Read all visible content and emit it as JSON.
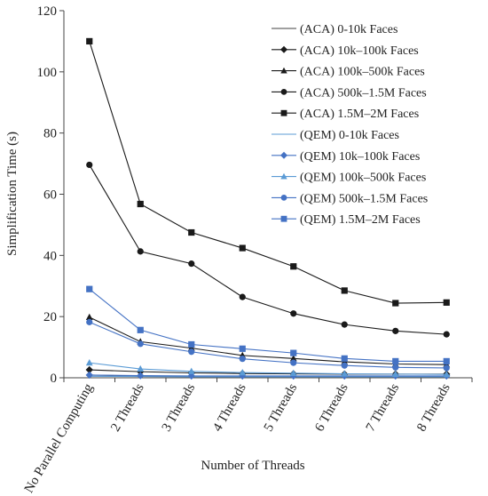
{
  "chart_data": {
    "type": "line",
    "xlabel": "Number of Threads",
    "ylabel": "Simplification Time (s)",
    "ylim": [
      0,
      120
    ],
    "yticks": [
      0,
      20,
      40,
      60,
      80,
      100,
      120
    ],
    "grid": false,
    "legend_position": "top-right",
    "categories": [
      "No Parallel Computing",
      "2 Threads",
      "3 Threads",
      "4 Threads",
      "5 Threads",
      "6 Threads",
      "7 Threads",
      "8 Threads"
    ],
    "series": [
      {
        "name": "(ACA) 0-10k Faces",
        "color": "#404040",
        "marker": "none",
        "values": [
          0.9,
          0.6,
          0.5,
          0.5,
          0.5,
          0.5,
          0.5,
          0.5
        ]
      },
      {
        "name": "(ACA) 10k–100k Faces",
        "color": "#1a1a1a",
        "marker": "diamond",
        "values": [
          2.6,
          2.0,
          1.6,
          1.4,
          1.3,
          1.2,
          1.2,
          1.2
        ]
      },
      {
        "name": "(ACA) 100k–500k Faces",
        "color": "#1a1a1a",
        "marker": "triangle",
        "values": [
          19.8,
          11.8,
          9.7,
          7.3,
          6.3,
          5.2,
          4.5,
          4.3
        ]
      },
      {
        "name": "(ACA) 500k–1.5M Faces",
        "color": "#1a1a1a",
        "marker": "circle",
        "values": [
          69.6,
          41.3,
          37.3,
          26.4,
          21.0,
          17.4,
          15.3,
          14.2
        ]
      },
      {
        "name": "(ACA) 1.5M–2M Faces",
        "color": "#1a1a1a",
        "marker": "square",
        "values": [
          110.0,
          56.8,
          47.5,
          42.4,
          36.4,
          28.5,
          24.4,
          24.6
        ]
      },
      {
        "name": "(QEM) 0-10k Faces",
        "color": "#5b9bd5",
        "marker": "none",
        "values": [
          0.5,
          0.4,
          0.3,
          0.3,
          0.3,
          0.3,
          0.3,
          0.3
        ]
      },
      {
        "name": "(QEM) 10k–100k Faces",
        "color": "#4472c4",
        "marker": "diamond",
        "values": [
          0.9,
          0.7,
          0.6,
          0.6,
          0.6,
          0.6,
          0.6,
          0.6
        ]
      },
      {
        "name": "(QEM) 100k–500k Faces",
        "color": "#5b9bd5",
        "marker": "triangle",
        "values": [
          4.9,
          2.9,
          2.1,
          1.7,
          1.5,
          1.3,
          1.2,
          1.1
        ]
      },
      {
        "name": "(QEM) 500k–1.5M Faces",
        "color": "#4472c4",
        "marker": "circle",
        "values": [
          18.2,
          11.1,
          8.5,
          6.2,
          4.9,
          4.0,
          3.4,
          3.2
        ]
      },
      {
        "name": "(QEM) 1.5M–2M Faces",
        "color": "#4472c4",
        "marker": "square",
        "values": [
          29.0,
          15.6,
          10.9,
          9.5,
          8.1,
          6.3,
          5.4,
          5.4
        ]
      }
    ]
  }
}
